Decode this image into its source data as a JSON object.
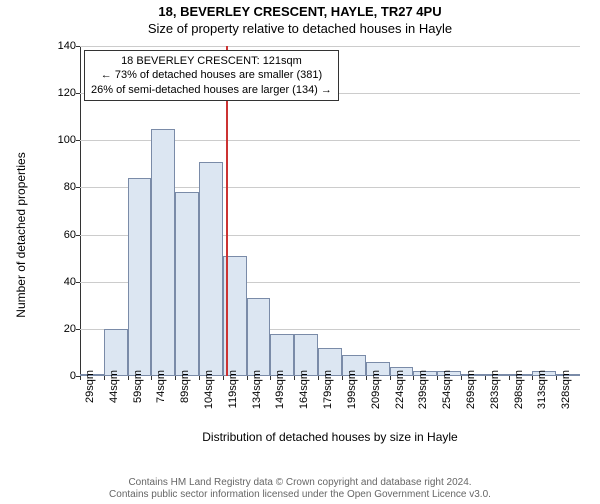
{
  "title1": "18, BEVERLEY CRESCENT, HAYLE, TR27 4PU",
  "title2": "Size of property relative to detached houses in Hayle",
  "chart": {
    "type": "histogram",
    "y_label": "Number of detached properties",
    "x_label": "Distribution of detached houses by size in Hayle",
    "ylim": [
      0,
      140
    ],
    "ytick_step": 20,
    "x_ticks": [
      "29sqm",
      "44sqm",
      "59sqm",
      "74sqm",
      "89sqm",
      "104sqm",
      "119sqm",
      "134sqm",
      "149sqm",
      "164sqm",
      "179sqm",
      "199sqm",
      "209sqm",
      "224sqm",
      "239sqm",
      "254sqm",
      "269sqm",
      "283sqm",
      "298sqm",
      "313sqm",
      "328sqm"
    ],
    "values": [
      1,
      20,
      84,
      105,
      78,
      91,
      51,
      33,
      18,
      18,
      12,
      9,
      6,
      4,
      2,
      2,
      1,
      1,
      1,
      2,
      1
    ],
    "bar_color": "#dce6f2",
    "bar_border_color": "#7a8ba8",
    "grid_color": "#cccccc",
    "background_color": "#ffffff",
    "ref_line_after_index": 6,
    "ref_line_color": "#cc3333",
    "annotation": {
      "line1": "18 BEVERLEY CRESCENT: 121sqm",
      "line2": "← 73% of detached houses are smaller (381)",
      "line3": "26% of semi-detached houses are larger (134) →"
    }
  },
  "footer": {
    "line1": "Contains HM Land Registry data © Crown copyright and database right 2024.",
    "line2": "Contains public sector information licensed under the Open Government Licence v3.0."
  }
}
